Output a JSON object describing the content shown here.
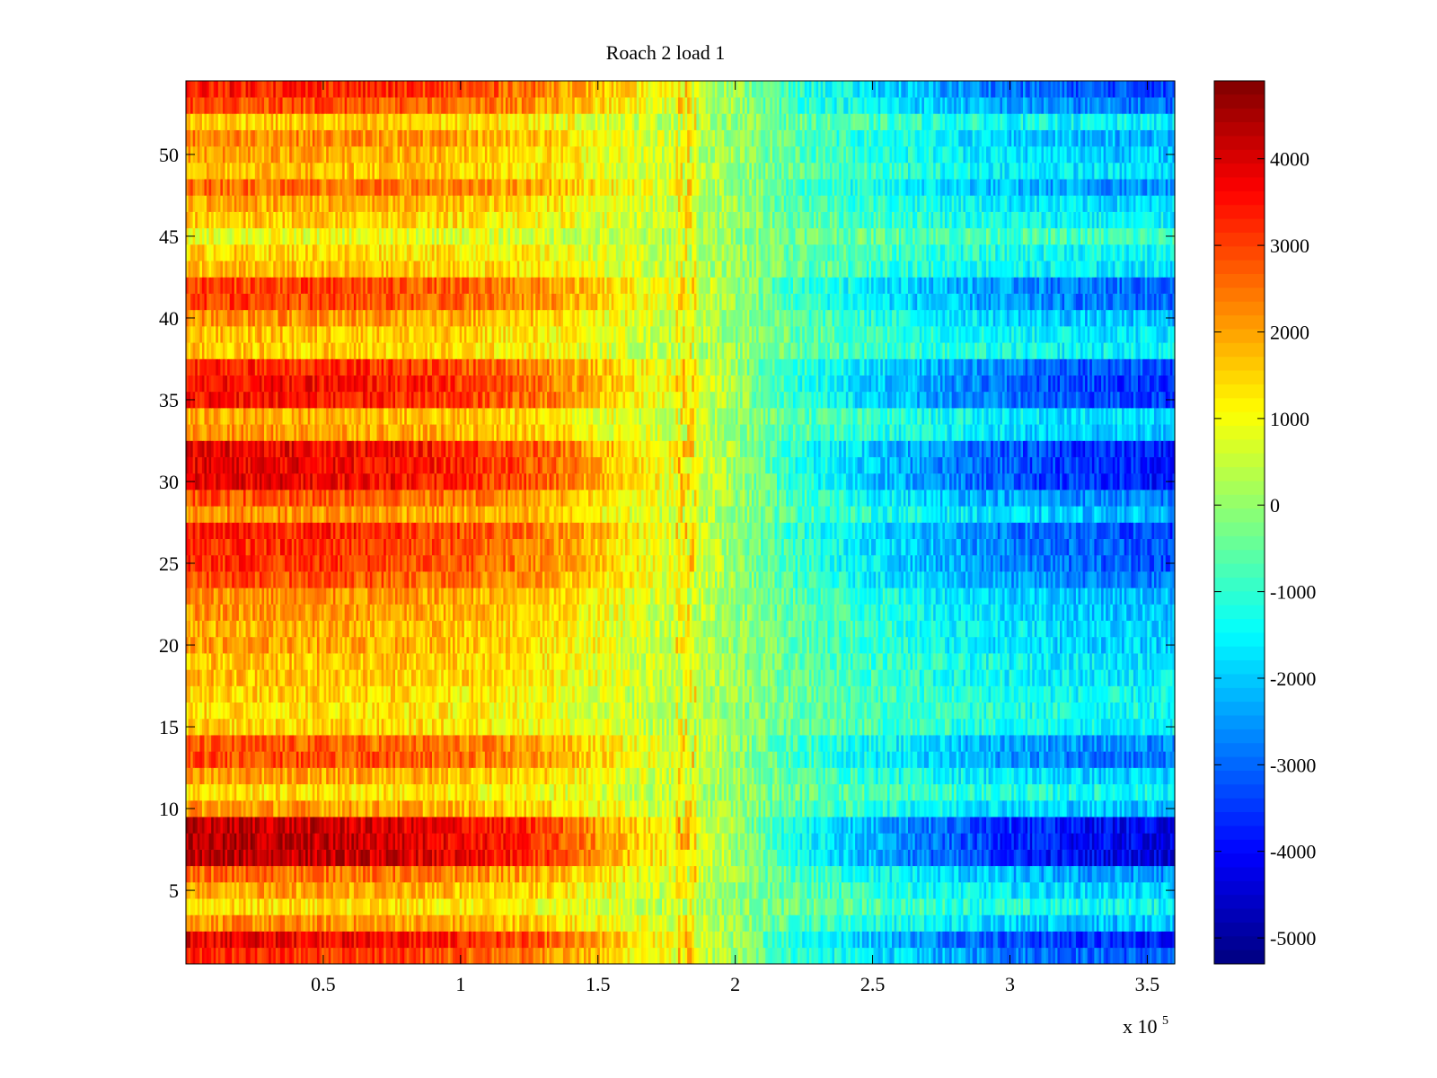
{
  "chart_data": {
    "type": "heatmap",
    "title": "Roach 2 load 1",
    "xlabel": "",
    "ylabel": "",
    "x_exponent_label": {
      "prefix": "x 10",
      "exponent": "5"
    },
    "xlim": [
      0,
      3.6
    ],
    "ylim": [
      0.5,
      54.5
    ],
    "x_ticks": [
      0.5,
      1,
      1.5,
      2,
      2.5,
      3,
      3.5
    ],
    "x_tick_labels": [
      "0.5",
      "1",
      "1.5",
      "2",
      "2.5",
      "3",
      "3.5"
    ],
    "y_ticks": [
      5,
      10,
      15,
      20,
      25,
      30,
      35,
      40,
      45,
      50
    ],
    "y_tick_labels": [
      "5",
      "10",
      "15",
      "20",
      "25",
      "30",
      "35",
      "40",
      "45",
      "50"
    ],
    "colormap": "jet",
    "colorbar": {
      "clim": [
        -5300,
        4900
      ],
      "ticks": [
        4000,
        3000,
        2000,
        1000,
        0,
        -1000,
        -2000,
        -3000,
        -4000,
        -5000
      ],
      "tick_labels": [
        "4000",
        "3000",
        "2000",
        "1000",
        "0",
        "-1000",
        "-2000",
        "-3000",
        "-4000",
        "-5000"
      ]
    },
    "x_profile_units": "x 10^5",
    "x_profile": [
      0.0,
      0.1,
      0.25,
      0.5,
      0.75,
      1.0,
      1.25,
      1.35,
      1.5,
      1.7,
      1.8,
      1.9,
      2.0,
      2.2,
      2.5,
      2.75,
      3.0,
      3.25,
      3.6
    ],
    "shape_profile": [
      1.0,
      1.0,
      1.0,
      0.98,
      0.94,
      0.86,
      0.74,
      0.66,
      0.5,
      0.3,
      0.24,
      0.16,
      0.02,
      -0.28,
      -0.52,
      -0.7,
      -0.84,
      -0.93,
      -1.0
    ],
    "row_amplitudes": [
      3200,
      3800,
      2200,
      1400,
      2000,
      2600,
      4300,
      4300,
      4200,
      2100,
      1400,
      2000,
      2900,
      2700,
      1500,
      1400,
      1500,
      1700,
      1700,
      2000,
      1900,
      2100,
      2200,
      2900,
      3200,
      3200,
      3400,
      2200,
      2800,
      3800,
      3800,
      3800,
      2100,
      1900,
      3500,
      3600,
      3300,
      1600,
      1700,
      2200,
      3000,
      3000,
      1700,
      1500,
      900,
      1600,
      1900,
      2600,
      1800,
      2000,
      2300,
      1600,
      2900,
      3400
    ],
    "noise": 650,
    "x_samples": 430
  },
  "colors": {
    "background": "#ffffff",
    "axes": "#000000"
  }
}
